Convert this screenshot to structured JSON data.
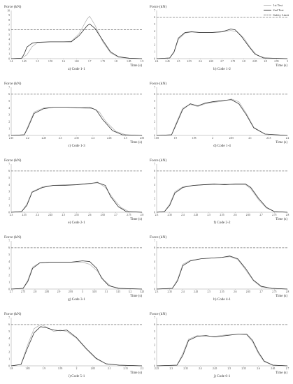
{
  "legend": {
    "items": [
      {
        "label": "1st Test",
        "color": "#b8b8b8",
        "dash": false
      },
      {
        "label": "2nd Test",
        "color": "#333333",
        "dash": false
      },
      {
        "label": "Safety Limit",
        "color": "#777777",
        "dash": true
      }
    ]
  },
  "chart_data": [
    {
      "type": "line",
      "caption": "a) Code 1-1",
      "ylabel": "Force (kN)",
      "xlabel": "Time (s)",
      "xlim": [
        1.4,
        1.9
      ],
      "xticks": [
        "1.4",
        "1.45",
        "1.5",
        "1.55",
        "1.6",
        "1.65",
        "1.7",
        "1.75",
        "1.8",
        "1.85",
        "1.9"
      ],
      "ylim": [
        0,
        10
      ],
      "yticks": [
        "0",
        "1",
        "2",
        "3",
        "4",
        "5",
        "6",
        "7",
        "8",
        "9",
        "10"
      ],
      "safety_limit": 6,
      "series": [
        {
          "name": "1st Test",
          "x": [
            1.4,
            1.44,
            1.46,
            1.48,
            1.5,
            1.55,
            1.6,
            1.63,
            1.66,
            1.69,
            1.7,
            1.72,
            1.75,
            1.78,
            1.81,
            1.85,
            1.9
          ],
          "y": [
            0,
            0.1,
            0.8,
            2.5,
            3.3,
            3.5,
            3.5,
            3.6,
            5.2,
            8.2,
            8.8,
            7.0,
            3.5,
            1.2,
            0.3,
            0.1,
            0
          ]
        },
        {
          "name": "2nd Test",
          "x": [
            1.4,
            1.44,
            1.45,
            1.46,
            1.48,
            1.5,
            1.55,
            1.6,
            1.63,
            1.66,
            1.69,
            1.7,
            1.72,
            1.75,
            1.78,
            1.81,
            1.85,
            1.9
          ],
          "y": [
            0,
            0.1,
            1.0,
            2.4,
            3.2,
            3.4,
            3.5,
            3.5,
            3.5,
            4.8,
            6.8,
            7.2,
            6.3,
            3.8,
            1.4,
            0.4,
            0.1,
            0
          ]
        }
      ]
    },
    {
      "type": "line",
      "caption": "b) Code 1-2",
      "ylabel": "Force (kN)",
      "xlabel": "Time (s)",
      "xlim": [
        2.4,
        3.0
      ],
      "xticks": [
        "2.4",
        "2.45",
        "2.5",
        "2.55",
        "2.6",
        "2.65",
        "2.7",
        "2.75",
        "2.8",
        "2.85",
        "2.9",
        "2.95",
        "3"
      ],
      "ylim": [
        0,
        7
      ],
      "yticks": [
        "0",
        "1",
        "2",
        "3",
        "4",
        "5",
        "6",
        "7"
      ],
      "safety_limit": 6,
      "series": [
        {
          "name": "1st Test",
          "x": [
            2.4,
            2.46,
            2.48,
            2.5,
            2.53,
            2.56,
            2.6,
            2.65,
            2.7,
            2.74,
            2.77,
            2.8,
            2.83,
            2.86,
            2.9,
            3.0
          ],
          "y": [
            0,
            0.1,
            0.9,
            2.8,
            3.7,
            3.9,
            3.8,
            3.8,
            3.9,
            4.1,
            3.9,
            3.0,
            1.6,
            0.5,
            0.1,
            0
          ]
        },
        {
          "name": "2nd Test",
          "x": [
            2.4,
            2.46,
            2.48,
            2.5,
            2.53,
            2.56,
            2.6,
            2.65,
            2.7,
            2.74,
            2.76,
            2.79,
            2.82,
            2.85,
            2.89,
            3.0
          ],
          "y": [
            0,
            0.1,
            1.0,
            3.0,
            3.8,
            3.9,
            3.8,
            3.8,
            3.9,
            4.3,
            4.2,
            3.2,
            1.9,
            0.7,
            0.1,
            0
          ]
        }
      ]
    },
    {
      "type": "line",
      "caption": "c) Code 1-3",
      "ylabel": "Force (kN)",
      "xlabel": "Time (s)",
      "xlim": [
        2.15,
        2.55
      ],
      "xticks": [
        "2.15",
        "2.2",
        "2.25",
        "2.3",
        "2.35",
        "2.4",
        "2.45",
        "2.5",
        "2.55"
      ],
      "ylim": [
        0,
        7
      ],
      "yticks": [
        "0",
        "1",
        "2",
        "3",
        "4",
        "5",
        "6",
        "7"
      ],
      "safety_limit": 6,
      "series": [
        {
          "name": "1st Test",
          "x": [
            2.15,
            2.19,
            2.2,
            2.22,
            2.25,
            2.28,
            2.32,
            2.36,
            2.4,
            2.42,
            2.44,
            2.47,
            2.5,
            2.55
          ],
          "y": [
            0,
            0.1,
            1.2,
            3.4,
            4.0,
            4.1,
            4.1,
            4.0,
            3.9,
            3.4,
            2.0,
            0.6,
            0.1,
            0
          ]
        },
        {
          "name": "2nd Test",
          "x": [
            2.15,
            2.19,
            2.2,
            2.22,
            2.25,
            2.28,
            2.32,
            2.36,
            2.39,
            2.41,
            2.43,
            2.46,
            2.49,
            2.55
          ],
          "y": [
            0,
            0.1,
            1.0,
            3.2,
            3.9,
            4.1,
            4.1,
            4.0,
            4.1,
            3.7,
            2.3,
            0.7,
            0.1,
            0
          ]
        }
      ]
    },
    {
      "type": "line",
      "caption": "d) Code 1-4",
      "ylabel": "Force (kN)",
      "xlabel": "Time (s)",
      "xlim": [
        1.85,
        2.2
      ],
      "xticks": [
        "1.85",
        "1.9",
        "1.95",
        "2",
        "2.05",
        "2.1",
        "2.15",
        "2.2"
      ],
      "ylim": [
        0,
        7
      ],
      "yticks": [
        "0",
        "1",
        "2",
        "3",
        "4",
        "5",
        "6",
        "7"
      ],
      "safety_limit": 6,
      "series": [
        {
          "name": "1st Test",
          "x": [
            1.85,
            1.89,
            1.9,
            1.92,
            1.94,
            1.96,
            1.98,
            2.0,
            2.03,
            2.05,
            2.07,
            2.09,
            2.11,
            2.14,
            2.2
          ],
          "y": [
            0,
            0.1,
            1.5,
            4.0,
            4.5,
            4.2,
            4.6,
            4.8,
            5.0,
            5.3,
            4.9,
            3.2,
            1.2,
            0.2,
            0
          ]
        },
        {
          "name": "2nd Test",
          "x": [
            1.85,
            1.89,
            1.9,
            1.92,
            1.94,
            1.96,
            1.98,
            2.0,
            2.03,
            2.05,
            2.07,
            2.09,
            2.11,
            2.14,
            2.2
          ],
          "y": [
            0,
            0.1,
            1.3,
            3.8,
            4.6,
            4.3,
            4.7,
            4.9,
            5.1,
            5.2,
            4.6,
            3.0,
            1.1,
            0.2,
            0
          ]
        }
      ]
    },
    {
      "type": "line",
      "caption": "e) Code 2-1",
      "ylabel": "Force (kN)",
      "xlabel": "Time (s)",
      "xlim": [
        2.3,
        2.8
      ],
      "xticks": [
        "2.3",
        "2.35",
        "2.4",
        "2.45",
        "2.5",
        "2.55",
        "2.6",
        "2.65",
        "2.7",
        "2.75",
        "2.8"
      ],
      "ylim": [
        0,
        7
      ],
      "yticks": [
        "0",
        "1",
        "2",
        "3",
        "4",
        "5",
        "6",
        "7"
      ],
      "safety_limit": 6,
      "series": [
        {
          "name": "1st Test",
          "x": [
            2.3,
            2.34,
            2.36,
            2.38,
            2.42,
            2.46,
            2.5,
            2.55,
            2.6,
            2.63,
            2.66,
            2.69,
            2.72,
            2.75,
            2.8
          ],
          "y": [
            0,
            0.1,
            1.2,
            3.0,
            3.7,
            3.9,
            4.0,
            4.0,
            4.1,
            4.4,
            3.6,
            2.0,
            0.7,
            0.1,
            0
          ]
        },
        {
          "name": "2nd Test",
          "x": [
            2.3,
            2.34,
            2.36,
            2.38,
            2.42,
            2.46,
            2.5,
            2.55,
            2.6,
            2.63,
            2.66,
            2.68,
            2.71,
            2.74,
            2.8
          ],
          "y": [
            0,
            0.1,
            1.0,
            2.9,
            3.6,
            3.9,
            3.9,
            4.0,
            4.2,
            4.3,
            3.9,
            2.3,
            0.8,
            0.1,
            0
          ]
        }
      ]
    },
    {
      "type": "line",
      "caption": "f) Code 2-2",
      "ylabel": "Force (kN)",
      "xlabel": "Time (s)",
      "xlim": [
        2.3,
        2.8
      ],
      "xticks": [
        "2.3",
        "2.35",
        "2.4",
        "2.45",
        "2.5",
        "2.55",
        "2.6",
        "2.65",
        "2.7",
        "2.75",
        "2.8"
      ],
      "ylim": [
        0,
        7
      ],
      "yticks": [
        "0",
        "1",
        "2",
        "3",
        "4",
        "5",
        "6",
        "7"
      ],
      "safety_limit": 6,
      "series": [
        {
          "name": "1st Test",
          "x": [
            2.3,
            2.33,
            2.35,
            2.37,
            2.4,
            2.44,
            2.48,
            2.52,
            2.56,
            2.6,
            2.64,
            2.66,
            2.69,
            2.72,
            2.75,
            2.8
          ],
          "y": [
            0,
            0.1,
            1.2,
            3.0,
            3.7,
            3.9,
            4.0,
            4.0,
            4.1,
            4.0,
            4.0,
            3.4,
            1.8,
            0.6,
            0.1,
            0
          ]
        },
        {
          "name": "2nd Test",
          "x": [
            2.3,
            2.33,
            2.35,
            2.37,
            2.4,
            2.44,
            2.48,
            2.52,
            2.56,
            2.6,
            2.64,
            2.66,
            2.69,
            2.72,
            2.75,
            2.8
          ],
          "y": [
            0,
            0.1,
            1.0,
            2.8,
            3.6,
            3.9,
            4.0,
            4.1,
            4.0,
            4.1,
            4.1,
            3.6,
            2.0,
            0.7,
            0.1,
            0
          ]
        }
      ]
    },
    {
      "type": "line",
      "caption": "g) Code 3-1",
      "ylabel": "Force (kN)",
      "xlabel": "Time (s)",
      "xlim": [
        2.7,
        3.25
      ],
      "xticks": [
        "2.7",
        "2.75",
        "2.8",
        "2.85",
        "2.9",
        "2.95",
        "3",
        "3.05",
        "3.1",
        "3.15",
        "3.2",
        "3.25"
      ],
      "ylim": [
        0,
        7
      ],
      "yticks": [
        "0",
        "1",
        "2",
        "3",
        "4",
        "5",
        "6",
        "7"
      ],
      "safety_limit": 6,
      "series": [
        {
          "name": "1st Test",
          "x": [
            2.7,
            2.75,
            2.77,
            2.79,
            2.82,
            2.86,
            2.9,
            2.95,
            3.0,
            3.03,
            3.06,
            3.09,
            3.12,
            3.16,
            3.25
          ],
          "y": [
            0,
            0.1,
            1.3,
            3.2,
            3.8,
            3.9,
            3.9,
            3.9,
            3.9,
            3.6,
            2.7,
            1.3,
            0.4,
            0.1,
            0
          ]
        },
        {
          "name": "2nd Test",
          "x": [
            2.7,
            2.75,
            2.77,
            2.79,
            2.82,
            2.86,
            2.9,
            2.95,
            3.0,
            3.03,
            3.06,
            3.08,
            3.11,
            3.15,
            3.25
          ],
          "y": [
            0,
            0.1,
            1.1,
            3.0,
            3.8,
            3.9,
            3.9,
            3.9,
            4.1,
            4.0,
            3.0,
            1.6,
            0.5,
            0.1,
            0
          ]
        }
      ]
    },
    {
      "type": "line",
      "caption": "h) Code 4-1",
      "ylabel": "Force (kN)",
      "xlabel": "Time (s)",
      "xlim": [
        2.3,
        2.8
      ],
      "xticks": [
        "2.3",
        "2.35",
        "2.4",
        "2.45",
        "2.5",
        "2.55",
        "2.6",
        "2.65",
        "2.7",
        "2.75",
        "2.8"
      ],
      "ylim": [
        0,
        7
      ],
      "yticks": [
        "0",
        "1",
        "2",
        "3",
        "4",
        "5",
        "6",
        "7"
      ],
      "safety_limit": 6,
      "series": [
        {
          "name": "1st Test",
          "x": [
            2.3,
            2.36,
            2.38,
            2.4,
            2.43,
            2.47,
            2.51,
            2.55,
            2.58,
            2.61,
            2.64,
            2.67,
            2.7,
            2.74,
            2.8
          ],
          "y": [
            0,
            0.1,
            1.4,
            3.6,
            4.2,
            4.4,
            4.5,
            4.6,
            4.7,
            4.3,
            2.8,
            1.2,
            0.3,
            0.1,
            0
          ]
        },
        {
          "name": "2nd Test",
          "x": [
            2.3,
            2.36,
            2.38,
            2.4,
            2.43,
            2.47,
            2.51,
            2.55,
            2.58,
            2.61,
            2.64,
            2.67,
            2.7,
            2.74,
            2.8
          ],
          "y": [
            0,
            0.1,
            1.2,
            3.4,
            4.1,
            4.4,
            4.5,
            4.6,
            4.8,
            4.4,
            3.0,
            1.3,
            0.4,
            0.1,
            0
          ]
        }
      ]
    },
    {
      "type": "line",
      "caption": "i) Code 5-1",
      "ylabel": "Force (kN)",
      "xlabel": "Time (s)",
      "xlim": [
        1.8,
        2.2
      ],
      "xticks": [
        "1.8",
        "1.85",
        "1.9",
        "1.95",
        "2",
        "2.05",
        "2.1",
        "2.15",
        "2.2"
      ],
      "ylim": [
        0,
        7
      ],
      "yticks": [
        "0",
        "1",
        "2",
        "3",
        "4",
        "5",
        "6",
        "7"
      ],
      "safety_limit": 6,
      "series": [
        {
          "name": "1st Test",
          "x": [
            1.8,
            1.83,
            1.85,
            1.87,
            1.89,
            1.91,
            1.93,
            1.95,
            1.97,
            2.0,
            2.03,
            2.06,
            2.09,
            2.13,
            2.2
          ],
          "y": [
            0,
            0.2,
            3.0,
            5.4,
            6.0,
            5.6,
            5.0,
            5.2,
            5.0,
            4.0,
            2.4,
            1.0,
            0.3,
            0.1,
            0
          ]
        },
        {
          "name": "2nd Test",
          "x": [
            1.8,
            1.83,
            1.85,
            1.87,
            1.89,
            1.91,
            1.93,
            1.95,
            1.97,
            2.0,
            2.03,
            2.06,
            2.09,
            2.13,
            2.2
          ],
          "y": [
            0,
            0.2,
            2.6,
            4.8,
            5.7,
            5.5,
            5.2,
            5.1,
            5.2,
            4.1,
            2.5,
            1.1,
            0.3,
            0.1,
            0
          ]
        }
      ]
    },
    {
      "type": "line",
      "caption": "j) Code 6-1",
      "ylabel": "Force (kN)",
      "xlabel": "Time (s)",
      "xlim": [
        2.25,
        2.7
      ],
      "xticks": [
        "2.25",
        "2.3",
        "2.35",
        "2.4",
        "2.45",
        "2.5",
        "2.55",
        "2.6",
        "2.65",
        "2.7"
      ],
      "ylim": [
        0,
        7
      ],
      "yticks": [
        "0",
        "1",
        "2",
        "3",
        "4",
        "5",
        "6",
        "7"
      ],
      "safety_limit": 6,
      "series": [
        {
          "name": "1st Test",
          "x": [
            2.25,
            2.32,
            2.34,
            2.36,
            2.39,
            2.42,
            2.45,
            2.49,
            2.53,
            2.56,
            2.58,
            2.6,
            2.62,
            2.65,
            2.7
          ],
          "y": [
            0,
            0.1,
            1.8,
            3.9,
            4.4,
            4.3,
            4.3,
            4.5,
            4.6,
            4.5,
            3.5,
            1.8,
            0.6,
            0.1,
            0
          ]
        },
        {
          "name": "2nd Test",
          "x": [
            2.25,
            2.32,
            2.34,
            2.36,
            2.39,
            2.42,
            2.45,
            2.49,
            2.53,
            2.56,
            2.58,
            2.6,
            2.62,
            2.65,
            2.7
          ],
          "y": [
            0,
            0.1,
            1.5,
            3.7,
            4.3,
            4.4,
            4.2,
            4.4,
            4.6,
            4.6,
            3.7,
            2.0,
            0.7,
            0.1,
            0
          ]
        }
      ]
    }
  ]
}
